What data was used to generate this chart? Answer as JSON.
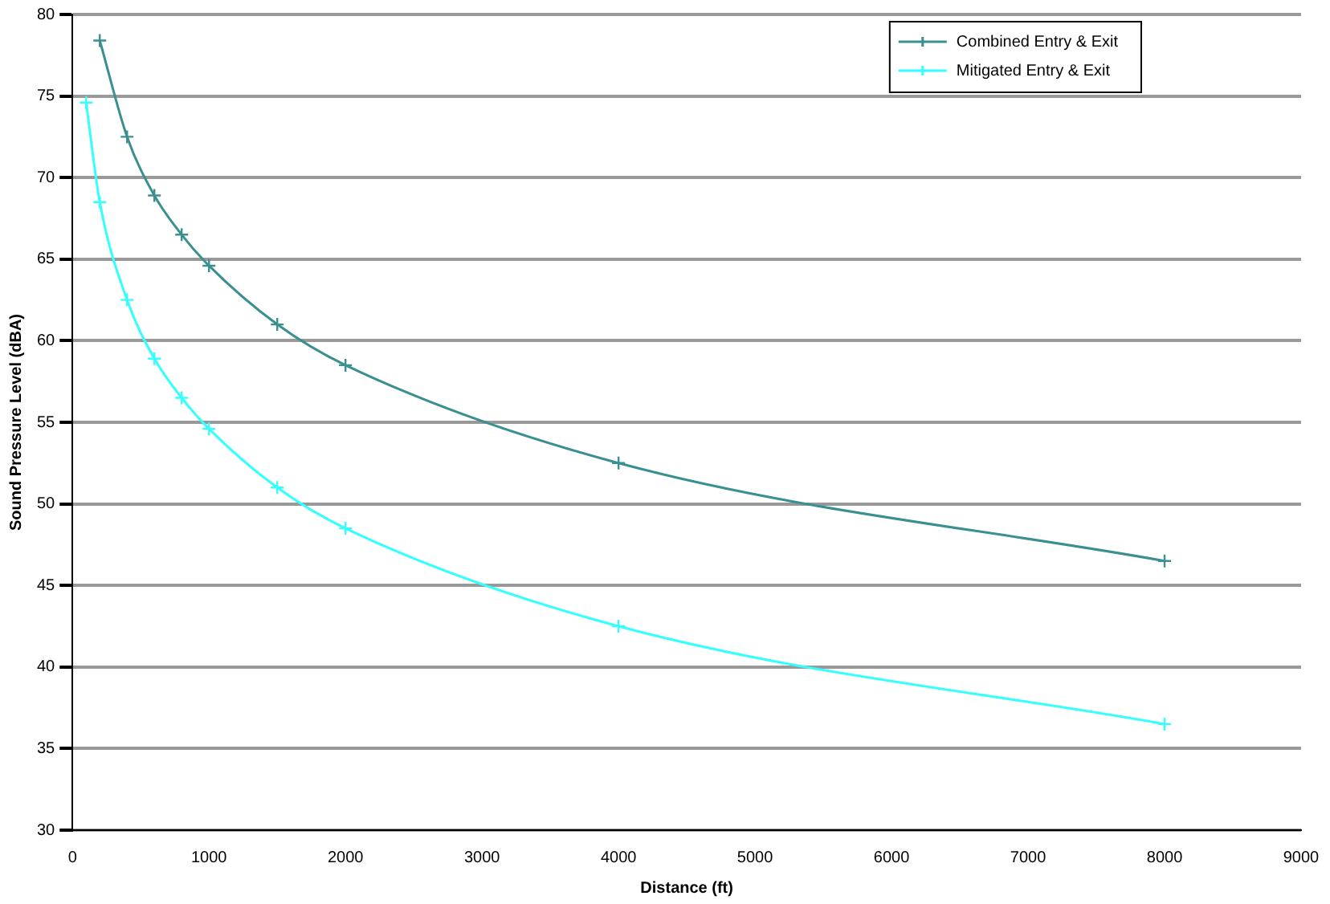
{
  "chart_data": {
    "type": "line",
    "xlabel": "Distance (ft)",
    "ylabel": "Sound Pressure Level (dBA)",
    "xlim": [
      0,
      9000
    ],
    "xticks": [
      0,
      1000,
      2000,
      3000,
      4000,
      5000,
      6000,
      7000,
      8000,
      9000
    ],
    "ylim": [
      30,
      80
    ],
    "yticks": [
      30,
      35,
      40,
      45,
      50,
      55,
      60,
      65,
      70,
      75,
      80
    ],
    "grid": "y",
    "legend": "top right",
    "marker": "cross",
    "line_style": "solid",
    "series": [
      {
        "name": "Combined Entry & Exit",
        "color": "#3a9090",
        "x": [
          200,
          400,
          600,
          800,
          1000,
          1500,
          2000,
          4000,
          8000
        ],
        "values": [
          78.4,
          72.5,
          68.9,
          66.5,
          64.6,
          61,
          58.5,
          52.5,
          46.5
        ]
      },
      {
        "name": "Mitigated Entry & Exit",
        "color": "#33ffff",
        "x": [
          100,
          200,
          400,
          600,
          800,
          1000,
          1500,
          2000,
          4000,
          8000
        ],
        "values": [
          74.6,
          68.5,
          62.5,
          58.9,
          56.5,
          54.6,
          51,
          48.5,
          42.5,
          36.5
        ]
      }
    ]
  }
}
